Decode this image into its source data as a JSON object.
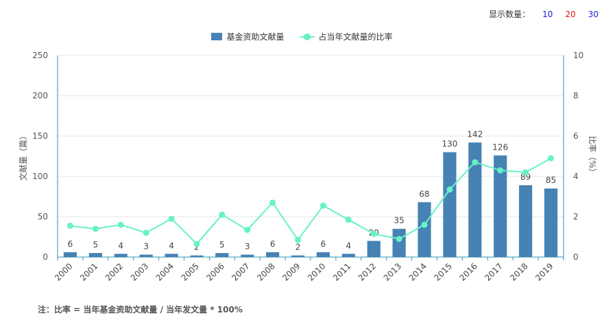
{
  "display_count": {
    "label": "显示数量：",
    "options": [
      {
        "value": "10",
        "color": "#1a1adb"
      },
      {
        "value": "20",
        "color": "#e0141e"
      },
      {
        "value": "30",
        "color": "#1a1adb"
      }
    ]
  },
  "colors": {
    "bar": "#4682b4",
    "line": "#66f2c4",
    "axis": "#2a91b0",
    "grid": "#e6e6e6"
  },
  "chart_data": {
    "type": "bar",
    "categories": [
      "2000",
      "2001",
      "2002",
      "2003",
      "2004",
      "2005",
      "2006",
      "2007",
      "2008",
      "2009",
      "2010",
      "2011",
      "2012",
      "2013",
      "2014",
      "2015",
      "2016",
      "2017",
      "2018",
      "2019"
    ],
    "series": [
      {
        "name": "基金资助文献量",
        "type": "bar",
        "axis": "left",
        "values": [
          6,
          5,
          4,
          3,
          4,
          2,
          5,
          3,
          6,
          2,
          6,
          4,
          20,
          35,
          68,
          130,
          142,
          126,
          89,
          85
        ]
      },
      {
        "name": "占当年文献量的比率",
        "type": "line",
        "axis": "right",
        "values": [
          1.55,
          1.4,
          1.6,
          1.2,
          1.9,
          0.65,
          2.1,
          1.35,
          2.7,
          0.85,
          2.55,
          1.85,
          1.15,
          0.9,
          1.6,
          3.35,
          4.7,
          4.3,
          4.2,
          4.9
        ]
      }
    ],
    "ylabel": "文献量（篇）",
    "y2label": "比率（%）",
    "ylim": [
      0,
      250
    ],
    "y2lim": [
      0,
      10
    ],
    "yticks": [
      0,
      50,
      100,
      150,
      200,
      250
    ],
    "y2ticks": [
      0,
      2,
      4,
      6,
      8,
      10
    ],
    "grid": true,
    "legend_position": "top-center"
  },
  "note": "注：比率 = 当年基金资助文献量 / 当年发文量 * 100%"
}
